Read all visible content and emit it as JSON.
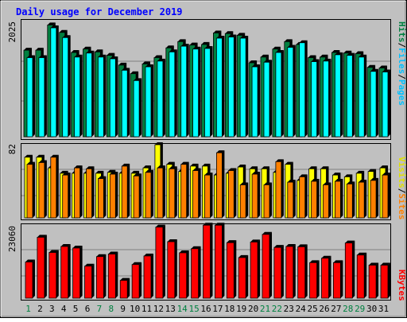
{
  "chart_data": [
    {
      "type": "bar",
      "title": "Daily usage for December 2019",
      "categories": [
        "1",
        "2",
        "3",
        "4",
        "5",
        "6",
        "7",
        "8",
        "9",
        "10",
        "11",
        "12",
        "13",
        "14",
        "15",
        "16",
        "17",
        "18",
        "19",
        "20",
        "21",
        "22",
        "23",
        "24",
        "25",
        "26",
        "27",
        "28",
        "29",
        "30",
        "31"
      ],
      "weekend_days": [
        "1",
        "7",
        "8",
        "14",
        "15",
        "21",
        "22",
        "28",
        "29"
      ],
      "ylabel_max": "2025",
      "side_label": [
        "Pages",
        "Files",
        "Hits"
      ],
      "ylim": [
        0,
        2025
      ],
      "series": [
        {
          "name": "Hits",
          "color": "#008040",
          "values": [
            1510,
            1510,
            1950,
            1820,
            1470,
            1530,
            1480,
            1420,
            1250,
            1100,
            1270,
            1380,
            1550,
            1660,
            1600,
            1610,
            1810,
            1800,
            1770,
            1290,
            1390,
            1530,
            1660,
            1610,
            1380,
            1390,
            1470,
            1460,
            1450,
            1210,
            1200
          ]
        },
        {
          "name": "Files",
          "color": "#00ffff",
          "values": [
            1380,
            1380,
            1900,
            1730,
            1390,
            1460,
            1390,
            1360,
            1160,
            980,
            1220,
            1320,
            1480,
            1580,
            1530,
            1540,
            1720,
            1740,
            1720,
            1220,
            1300,
            1470,
            1560,
            1640,
            1310,
            1320,
            1430,
            1420,
            1390,
            1140,
            1130
          ]
        },
        {
          "name": "Pages",
          "color": "#00c0ff",
          "values": [
            1380,
            1380,
            1900,
            1730,
            1390,
            1460,
            1390,
            1360,
            1160,
            980,
            1220,
            1320,
            1480,
            1580,
            1530,
            1540,
            1720,
            1740,
            1720,
            1220,
            1300,
            1470,
            1560,
            1640,
            1310,
            1320,
            1430,
            1420,
            1390,
            1140,
            1130
          ]
        }
      ]
    },
    {
      "type": "bar",
      "categories": [
        "1",
        "2",
        "3",
        "4",
        "5",
        "6",
        "7",
        "8",
        "9",
        "10",
        "11",
        "12",
        "13",
        "14",
        "15",
        "16",
        "17",
        "18",
        "19",
        "20",
        "21",
        "22",
        "23",
        "24",
        "25",
        "26",
        "27",
        "28",
        "29",
        "30",
        "31"
      ],
      "ylabel_max": "82",
      "side_label": [
        "Sites",
        "Visits"
      ],
      "ylim": [
        0,
        82
      ],
      "series": [
        {
          "name": "Visits",
          "color": "#ffff00",
          "values": [
            68,
            68,
            56,
            50,
            50,
            50,
            50,
            51,
            50,
            50,
            56,
            82,
            60,
            52,
            58,
            58,
            48,
            50,
            57,
            55,
            55,
            51,
            60,
            42,
            55,
            55,
            48,
            46,
            50,
            52,
            56
          ]
        },
        {
          "name": "Sites",
          "color": "#ff8000",
          "values": [
            60,
            62,
            68,
            48,
            56,
            55,
            44,
            49,
            58,
            47,
            51,
            56,
            55,
            60,
            53,
            48,
            73,
            53,
            37,
            49,
            37,
            63,
            40,
            46,
            41,
            37,
            41,
            38,
            40,
            42,
            48
          ]
        }
      ]
    },
    {
      "type": "bar",
      "categories": [
        "1",
        "2",
        "3",
        "4",
        "5",
        "6",
        "7",
        "8",
        "9",
        "10",
        "11",
        "12",
        "13",
        "14",
        "15",
        "16",
        "17",
        "18",
        "19",
        "20",
        "21",
        "22",
        "23",
        "24",
        "25",
        "26",
        "27",
        "28",
        "29",
        "30",
        "31"
      ],
      "ylabel_max": "23060",
      "side_label": [
        "KBytes"
      ],
      "ylim": [
        0,
        23060
      ],
      "series": [
        {
          "name": "KBytes",
          "color": "#ff0000",
          "values": [
            11400,
            19200,
            14400,
            16300,
            15800,
            10100,
            13100,
            13900,
            5600,
            10600,
            13300,
            22400,
            17800,
            14300,
            15600,
            23000,
            23000,
            17500,
            12800,
            17700,
            20100,
            16000,
            16300,
            16200,
            11200,
            12600,
            11200,
            17400,
            13600,
            10400,
            10400
          ]
        }
      ]
    }
  ]
}
